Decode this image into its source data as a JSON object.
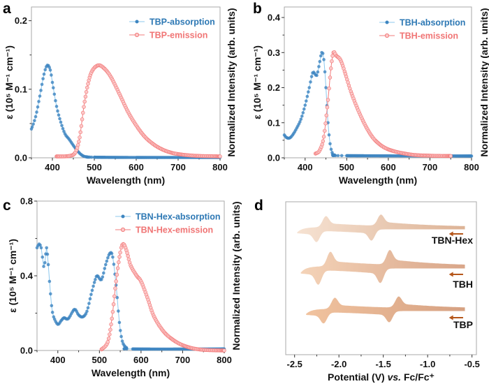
{
  "panel_letters": [
    "a",
    "b",
    "c",
    "d"
  ],
  "colors": {
    "absorption": "#3d85c0",
    "absorption_line": "#8cc8ee",
    "emission": "#f27b7b",
    "emission_fill": "#fcc9c9",
    "arrow": "#b5561a"
  },
  "chart_data": [
    {
      "type": "line",
      "xlabel": "Wavelength (nm)",
      "ylabel": "ε (10⁵ M⁻¹ cm⁻¹)",
      "ylabel_right": "Normalized Intensity (arb. units)",
      "xlim": [
        350,
        800
      ],
      "ylim": [
        0,
        0.22
      ],
      "xticks": [
        "400",
        "500",
        "600",
        "700",
        "800"
      ],
      "yticks": [
        "0.0",
        "0.1",
        "0.2"
      ],
      "legend": "top-right",
      "series": [
        {
          "name": "TBP-absorption",
          "axis": "left",
          "x": [
            350,
            360,
            370,
            380,
            388,
            395,
            400,
            410,
            420,
            430,
            440,
            450,
            460,
            470,
            480,
            500,
            600,
            800
          ],
          "y": [
            0.042,
            0.06,
            0.09,
            0.122,
            0.135,
            0.128,
            0.11,
            0.075,
            0.052,
            0.035,
            0.027,
            0.018,
            0.01,
            0.004,
            0.0015,
            0.0008,
            0.0005,
            0.0005
          ]
        },
        {
          "name": "TBP-emission",
          "axis": "right",
          "x": [
            410,
            440,
            455,
            465,
            475,
            485,
            495,
            510,
            525,
            540,
            560,
            580,
            600,
            620,
            640,
            660,
            680,
            700,
            740,
            800
          ],
          "y": [
            0.015,
            0.02,
            0.06,
            0.22,
            0.55,
            0.8,
            0.94,
            1.0,
            0.96,
            0.87,
            0.69,
            0.5,
            0.35,
            0.23,
            0.15,
            0.095,
            0.06,
            0.04,
            0.022,
            0.015
          ]
        }
      ]
    },
    {
      "type": "line",
      "xlabel": "Wavelength (nm)",
      "ylabel": "ε (10⁵ M⁻¹ cm⁻¹)",
      "ylabel_right": "Normalized Intensity (arb. units)",
      "xlim": [
        350,
        800
      ],
      "ylim": [
        0,
        0.43
      ],
      "xticks": [
        "400",
        "500",
        "600",
        "700",
        "800"
      ],
      "yticks": [
        "0.0",
        "0.1",
        "0.2",
        "0.3",
        "0.4"
      ],
      "legend": "top-right",
      "series": [
        {
          "name": "TBH-absorption",
          "axis": "left",
          "x": [
            350,
            355,
            362,
            370,
            380,
            390,
            400,
            410,
            418,
            423,
            428,
            433,
            440,
            445,
            450,
            455,
            460,
            465,
            470,
            500,
            800
          ],
          "y": [
            0.065,
            0.058,
            0.056,
            0.065,
            0.085,
            0.11,
            0.15,
            0.2,
            0.242,
            0.24,
            0.235,
            0.26,
            0.3,
            0.28,
            0.2,
            0.1,
            0.04,
            0.015,
            0.008,
            0.006,
            0.005
          ]
        },
        {
          "name": "TBH-emission",
          "axis": "right",
          "x": [
            425,
            435,
            445,
            455,
            462,
            468,
            475,
            485,
            495,
            510,
            530,
            550,
            570,
            600,
            650,
            700,
            750
          ],
          "y": [
            0.04,
            0.07,
            0.2,
            0.55,
            0.85,
            1.0,
            0.97,
            0.93,
            0.82,
            0.63,
            0.43,
            0.27,
            0.16,
            0.08,
            0.033,
            0.02,
            0.017
          ]
        }
      ]
    },
    {
      "type": "line",
      "xlabel": "Wavelength (nm)",
      "ylabel": "ε (10⁵ M⁻¹ cm⁻¹)",
      "ylabel_right": "Normalized Intensity (arb. units)",
      "xlim": [
        350,
        800
      ],
      "ylim": [
        0,
        0.8
      ],
      "xticks": [
        "400",
        "500",
        "600",
        "700",
        "800"
      ],
      "yticks": [
        "0.0",
        "0.4",
        "0.8"
      ],
      "legend": "top-right",
      "series": [
        {
          "name": "TBN-Hex-absorption",
          "axis": "left",
          "x": [
            350,
            355,
            360,
            363,
            366,
            369,
            373,
            377,
            380,
            385,
            390,
            400,
            408,
            415,
            425,
            440,
            450,
            460,
            470,
            480,
            490,
            495,
            505,
            515,
            525,
            532,
            540,
            548,
            555,
            565,
            580,
            800
          ],
          "y": [
            0.55,
            0.57,
            0.55,
            0.5,
            0.45,
            0.47,
            0.55,
            0.46,
            0.37,
            0.24,
            0.18,
            0.14,
            0.16,
            0.175,
            0.17,
            0.22,
            0.19,
            0.18,
            0.21,
            0.3,
            0.38,
            0.4,
            0.38,
            0.46,
            0.52,
            0.5,
            0.35,
            0.15,
            0.05,
            0.015,
            0.008,
            0.008
          ]
        },
        {
          "name": "TBN-Hex-emission",
          "axis": "right",
          "x": [
            505,
            520,
            530,
            540,
            550,
            557,
            565,
            575,
            590,
            600,
            615,
            630,
            650,
            670,
            700,
            740,
            800
          ],
          "y": [
            0.01,
            0.08,
            0.3,
            0.65,
            0.92,
            1.0,
            0.94,
            0.8,
            0.7,
            0.65,
            0.5,
            0.33,
            0.2,
            0.12,
            0.05,
            0.01,
            0.0
          ]
        }
      ]
    },
    {
      "type": "area",
      "xlabel_parts": [
        "Potential (V) ",
        "vs.",
        " Fc/Fc⁺"
      ],
      "xlim": [
        -2.6,
        -0.45
      ],
      "xticks": [
        "-2.5",
        "-2.0",
        "-1.5",
        "-1.0",
        "-0.5"
      ],
      "scan_direction": "negative",
      "series": [
        {
          "name": "TBN-Hex",
          "e_start": -0.58,
          "e_switch": -2.47,
          "epc": [
            -1.63,
            -2.25
          ],
          "epa": [
            -1.53,
            -2.15
          ],
          "color_light": "#f6e2d2",
          "color_dark": "#ddb396"
        },
        {
          "name": "TBH",
          "e_start": -0.58,
          "e_switch": -2.43,
          "epc": [
            -1.53,
            -2.23
          ],
          "epa": [
            -1.43,
            -2.1
          ],
          "color_light": "#f4d3b8",
          "color_dark": "#d9a689"
        },
        {
          "name": "TBP",
          "e_start": -0.58,
          "e_switch": -2.37,
          "epc": [
            -1.43,
            -2.17
          ],
          "epa": [
            -1.33,
            -2.05
          ],
          "color_light": "#f1c39f",
          "color_dark": "#d6a182"
        }
      ]
    }
  ]
}
